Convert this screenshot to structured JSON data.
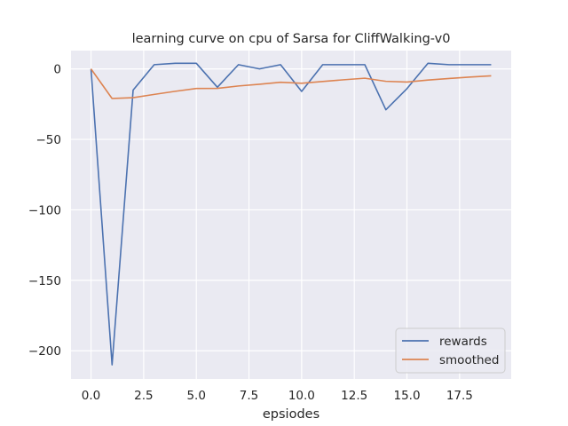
{
  "chart_data": {
    "type": "line",
    "title": "learning curve on cpu of Sarsa for CliffWalking-v0",
    "xlabel": "epsiodes",
    "ylabel": "",
    "xlim": [
      -0.95,
      19.95
    ],
    "ylim": [
      -220,
      13
    ],
    "xticks": [
      0.0,
      2.5,
      5.0,
      7.5,
      10.0,
      12.5,
      15.0,
      17.5
    ],
    "xtick_labels": [
      "0.0",
      "2.5",
      "5.0",
      "7.5",
      "10.0",
      "12.5",
      "15.0",
      "17.5"
    ],
    "yticks": [
      0,
      -50,
      -100,
      -150,
      -200
    ],
    "ytick_labels": [
      "0",
      "−50",
      "−100",
      "−150",
      "−200"
    ],
    "grid": true,
    "legend_position": "lower-right",
    "x": [
      0,
      1,
      2,
      3,
      4,
      5,
      6,
      7,
      8,
      9,
      10,
      11,
      12,
      13,
      14,
      15,
      16,
      17,
      18,
      19
    ],
    "series": [
      {
        "name": "rewards",
        "color": "#4c72b0",
        "values": [
          0,
          -210,
          -15,
          3,
          4,
          4,
          -13,
          3,
          0,
          3,
          -16,
          3,
          3,
          3,
          -29,
          -14,
          4,
          3,
          3,
          3
        ]
      },
      {
        "name": "smoothed",
        "color": "#dd8452",
        "values": [
          0,
          -21,
          -20.4,
          -18.1,
          -15.9,
          -13.9,
          -13.8,
          -12.1,
          -10.9,
          -9.5,
          -10.2,
          -8.9,
          -7.7,
          -6.6,
          -8.8,
          -9.3,
          -7.9,
          -6.8,
          -5.8,
          -4.9
        ]
      }
    ]
  }
}
